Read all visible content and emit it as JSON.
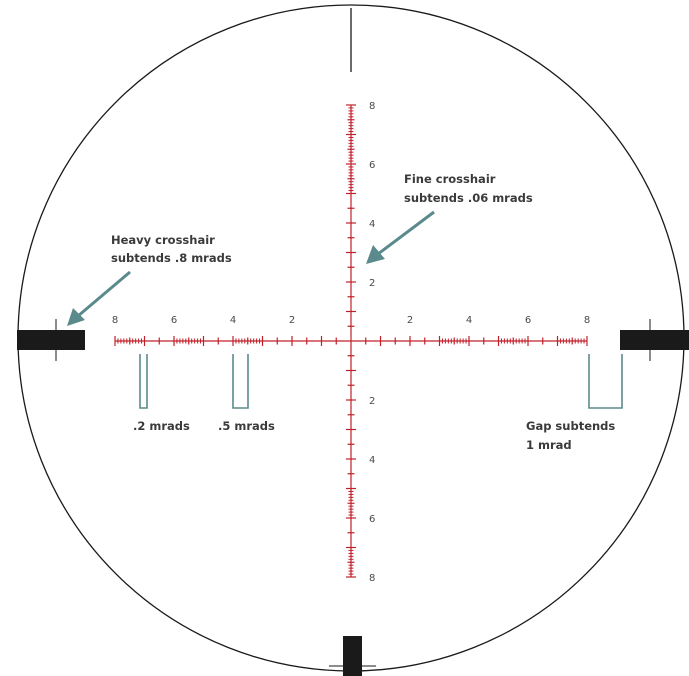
{
  "colors": {
    "reticle_red": "#c0202a",
    "heavy_black": "#1a1a1a",
    "pointer_teal": "#5b8a8c",
    "label_text": "#3a3a3a"
  },
  "tick_labels": {
    "horizontal_left": [
      "8",
      "6",
      "4",
      "2"
    ],
    "horizontal_right": [
      "2",
      "4",
      "6",
      "8"
    ],
    "vertical_up": [
      "2",
      "4",
      "6",
      "8"
    ],
    "vertical_down": [
      "2",
      "4",
      "6",
      "8"
    ]
  },
  "callouts": {
    "heavy_line1": "Heavy crosshair",
    "heavy_line2": "subtends .8 mrads",
    "fine_line1": "Fine crosshair",
    "fine_line2": "subtends .06 mrads",
    "point2": ".2 mrads",
    "point5": ".5 mrads",
    "gap_line1": "Gap subtends",
    "gap_line2": "1 mrad"
  }
}
